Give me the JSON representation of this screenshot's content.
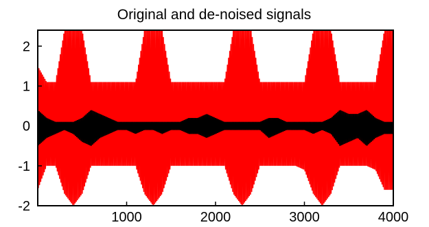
{
  "chart_data": {
    "type": "line",
    "title": "Original and de-noised signals",
    "xlabel": "",
    "ylabel": "",
    "xlim": [
      0,
      4000
    ],
    "ylim": [
      -2,
      2.4
    ],
    "x_ticks": [
      1000,
      2000,
      3000,
      4000
    ],
    "x_tick_labels": [
      "1000",
      "2000",
      "3000",
      "4000"
    ],
    "y_ticks": [
      2,
      1,
      0,
      -1,
      -2
    ],
    "y_tick_labels": [
      "2",
      "1",
      "0",
      "-1",
      "-2"
    ],
    "grid": false,
    "legend": "none",
    "series": [
      {
        "color": "#ff0000",
        "style": "dense oscillating signal",
        "x": [
          0,
          100,
          200,
          300,
          400,
          500,
          600,
          700,
          800,
          900,
          1000,
          1100,
          1200,
          1300,
          1400,
          1500,
          1600,
          1700,
          1800,
          1900,
          2000,
          2100,
          2200,
          2300,
          2400,
          2500,
          2600,
          2700,
          2800,
          2900,
          3000,
          3100,
          3200,
          3300,
          3400,
          3500,
          3600,
          3700,
          3800,
          3900,
          4000
        ],
        "ymin": [
          -1.6,
          -1.0,
          -1.0,
          -1.7,
          -2.0,
          -1.7,
          -1.0,
          -1.0,
          -1.0,
          -1.0,
          -1.0,
          -1.0,
          -1.7,
          -2.0,
          -1.7,
          -1.0,
          -1.0,
          -1.0,
          -1.0,
          -1.0,
          -1.0,
          -1.0,
          -1.7,
          -2.0,
          -1.7,
          -1.0,
          -1.0,
          -1.0,
          -1.0,
          -1.0,
          -1.1,
          -1.7,
          -2.0,
          -1.7,
          -1.0,
          -1.0,
          -1.0,
          -1.0,
          -1.1,
          -1.6,
          -1.6
        ],
        "ymax": [
          1.5,
          1.1,
          1.1,
          2.4,
          2.4,
          2.4,
          1.1,
          1.1,
          1.1,
          1.1,
          1.1,
          1.1,
          2.4,
          2.4,
          2.4,
          1.1,
          1.1,
          1.1,
          1.1,
          1.1,
          1.1,
          1.1,
          2.4,
          2.4,
          2.4,
          1.1,
          1.1,
          1.1,
          1.1,
          1.1,
          1.1,
          2.4,
          2.4,
          2.4,
          1.1,
          1.1,
          1.1,
          1.1,
          1.1,
          2.4,
          2.4
        ]
      },
      {
        "color": "#000000",
        "style": "de-noised signal",
        "x": [
          0,
          100,
          200,
          300,
          400,
          500,
          600,
          700,
          800,
          900,
          1000,
          1100,
          1200,
          1300,
          1400,
          1500,
          1600,
          1700,
          1800,
          1900,
          2000,
          2100,
          2200,
          2300,
          2400,
          2500,
          2600,
          2700,
          2800,
          2900,
          3000,
          3100,
          3200,
          3300,
          3400,
          3500,
          3600,
          3700,
          3800,
          3900,
          4000
        ],
        "ymin": [
          -0.5,
          -0.3,
          -0.2,
          -0.1,
          -0.2,
          -0.4,
          -0.5,
          -0.3,
          -0.2,
          -0.1,
          -0.1,
          -0.2,
          -0.1,
          -0.1,
          -0.2,
          -0.1,
          -0.1,
          -0.2,
          -0.2,
          -0.3,
          -0.2,
          -0.1,
          -0.1,
          -0.1,
          -0.1,
          -0.1,
          -0.3,
          -0.2,
          -0.1,
          -0.1,
          -0.1,
          -0.2,
          -0.1,
          -0.2,
          -0.5,
          -0.4,
          -0.3,
          -0.5,
          -0.3,
          -0.2,
          -0.2
        ],
        "ymax": [
          0.4,
          0.2,
          0.1,
          0.1,
          0.1,
          0.2,
          0.4,
          0.3,
          0.2,
          0.1,
          0.1,
          0.1,
          0.1,
          0.1,
          0.1,
          0.1,
          0.1,
          0.2,
          0.2,
          0.3,
          0.2,
          0.1,
          0.1,
          0.1,
          0.1,
          0.1,
          0.2,
          0.2,
          0.1,
          0.1,
          0.1,
          0.1,
          0.1,
          0.2,
          0.4,
          0.3,
          0.3,
          0.4,
          0.2,
          0.1,
          0.1
        ]
      }
    ]
  }
}
